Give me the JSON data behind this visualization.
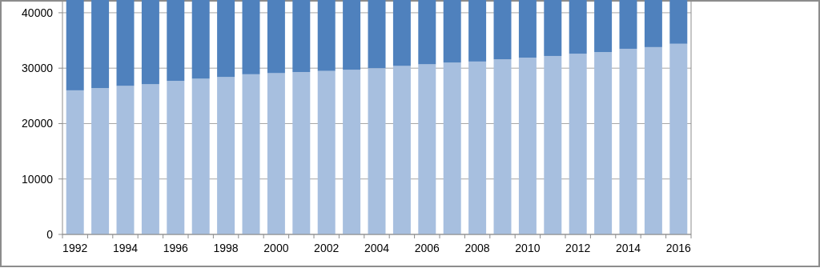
{
  "chart_data": {
    "type": "bar",
    "stacked": true,
    "categories": [
      "1992",
      null,
      "1994",
      null,
      "1996",
      null,
      "1998",
      null,
      "2000",
      null,
      "2002",
      null,
      "2004",
      null,
      "2006",
      null,
      "2008",
      null,
      "2010",
      null,
      "2012",
      null,
      "2014",
      null,
      "2016"
    ],
    "series": [
      {
        "color": "#a7bfdf",
        "values": [
          26000,
          26400,
          26800,
          27100,
          27700,
          28100,
          28400,
          28900,
          29100,
          29300,
          29500,
          29700,
          30000,
          30400,
          30700,
          31000,
          31200,
          31600,
          31900,
          32200,
          32600,
          32900,
          33500,
          33800,
          34400
        ]
      },
      {
        "color": "#4f81bd",
        "values": [
          16300,
          15900,
          15500,
          15200,
          14600,
          14200,
          13900,
          13400,
          13200,
          13000,
          12800,
          12600,
          12300,
          11900,
          11600,
          11300,
          11100,
          10700,
          10400,
          10100,
          9700,
          9400,
          8800,
          8500,
          7900
        ]
      }
    ],
    "ylim": [
      0,
      42300
    ],
    "yticks": [
      0,
      10000,
      20000,
      30000,
      40000
    ],
    "grid": "y"
  }
}
